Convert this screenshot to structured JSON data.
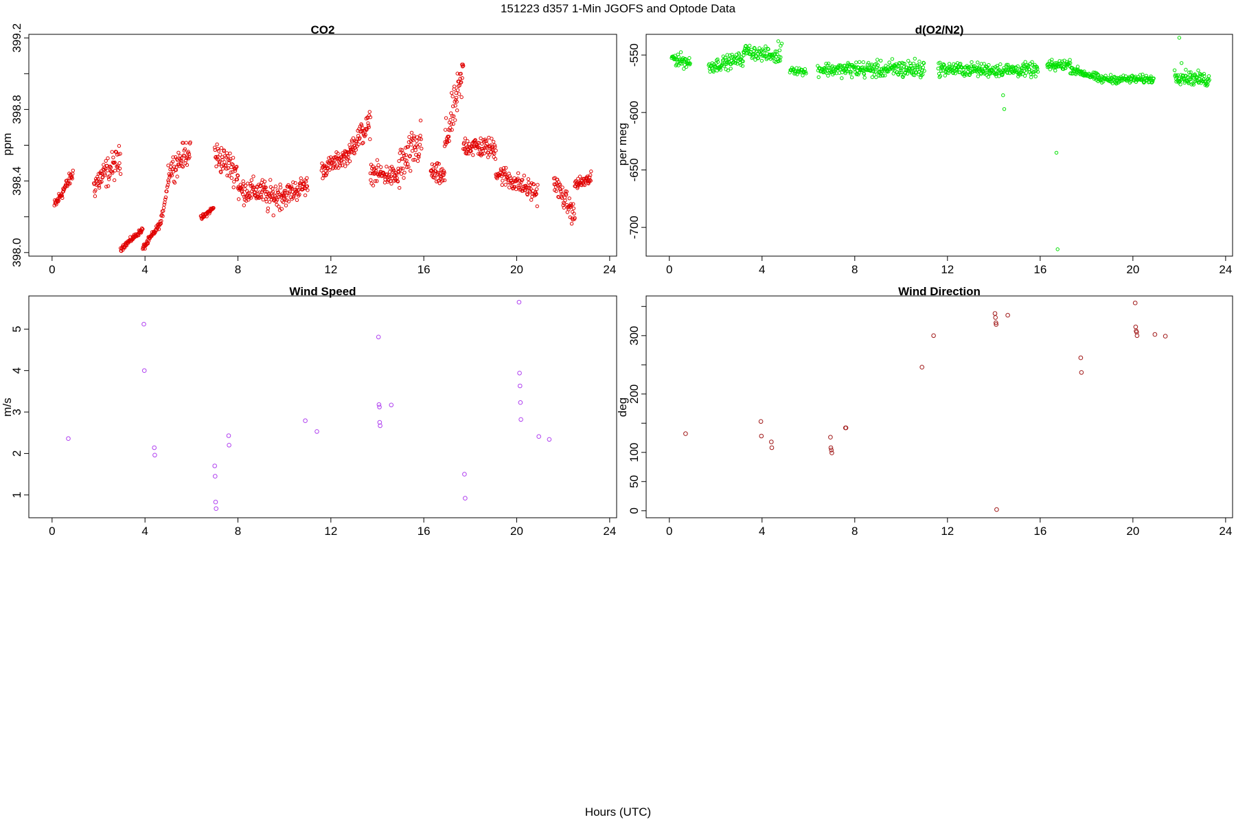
{
  "suptitle": "151223   d357   1-Min  JGOFS and Optode Data",
  "xlabel": "Hours (UTC)",
  "chart_data": [
    {
      "id": "co2",
      "type": "scatter",
      "title": "CO2",
      "ylabel": "ppm",
      "color": "#e00000",
      "marker_size": 2.2,
      "xlim": [
        -1,
        24.3
      ],
      "ylim": [
        397.98,
        399.22
      ],
      "xticks": [
        0,
        4,
        8,
        12,
        16,
        20,
        24
      ],
      "yticks": [
        398.0,
        398.4,
        398.8,
        399.2
      ],
      "yticks_minor": [
        398.2,
        398.6,
        399.0
      ],
      "ytick_labels": [
        "398.0",
        "398.4",
        "398.8",
        "399.2"
      ],
      "ylabel_rotated": true,
      "segments": [
        {
          "x0": 0.1,
          "x1": 0.9,
          "y0": 398.26,
          "y1": 398.44,
          "noise": 0.03,
          "n": 50
        },
        {
          "x0": 1.8,
          "x1": 2.95,
          "y0": 398.38,
          "y1": 398.52,
          "noise": 0.07,
          "n": 70
        },
        {
          "x0": 2.95,
          "x1": 3.9,
          "y0": 398.02,
          "y1": 398.13,
          "noise": 0.012,
          "n": 60
        },
        {
          "x0": 3.9,
          "x1": 4.7,
          "y0": 398.02,
          "y1": 398.17,
          "noise": 0.015,
          "n": 50
        },
        {
          "x0": 4.7,
          "x1": 5.0,
          "y0": 398.18,
          "y1": 398.4,
          "noise": 0.02,
          "n": 15
        },
        {
          "x0": 5.0,
          "x1": 5.95,
          "y0": 398.45,
          "y1": 398.58,
          "noise": 0.06,
          "n": 55
        },
        {
          "x0": 6.4,
          "x1": 6.95,
          "y0": 398.19,
          "y1": 398.25,
          "noise": 0.012,
          "n": 35
        },
        {
          "x0": 7.0,
          "x1": 8.0,
          "y0": 398.55,
          "y1": 398.45,
          "noise": 0.07,
          "n": 60
        },
        {
          "x0": 8.0,
          "x1": 9.2,
          "y0": 398.35,
          "y1": 398.34,
          "noise": 0.06,
          "n": 75
        },
        {
          "x0": 9.2,
          "x1": 10.0,
          "y0": 398.3,
          "y1": 398.33,
          "noise": 0.07,
          "n": 50
        },
        {
          "x0": 10.0,
          "x1": 11.0,
          "y0": 398.32,
          "y1": 398.38,
          "noise": 0.05,
          "n": 60
        },
        {
          "x0": 11.6,
          "x1": 12.9,
          "y0": 398.46,
          "y1": 398.56,
          "noise": 0.04,
          "n": 80
        },
        {
          "x0": 12.9,
          "x1": 13.7,
          "y0": 398.6,
          "y1": 398.72,
          "noise": 0.06,
          "n": 50
        },
        {
          "x0": 13.7,
          "x1": 14.9,
          "y0": 398.45,
          "y1": 398.42,
          "noise": 0.05,
          "n": 70
        },
        {
          "x0": 14.9,
          "x1": 15.9,
          "y0": 398.46,
          "y1": 398.62,
          "noise": 0.1,
          "n": 60
        },
        {
          "x0": 16.3,
          "x1": 16.9,
          "y0": 398.45,
          "y1": 398.42,
          "noise": 0.05,
          "n": 40
        },
        {
          "x0": 16.9,
          "x1": 17.7,
          "y0": 398.6,
          "y1": 399.0,
          "noise": 0.1,
          "n": 55
        },
        {
          "x0": 17.7,
          "x1": 19.1,
          "y0": 398.6,
          "y1": 398.58,
          "noise": 0.05,
          "n": 85
        },
        {
          "x0": 19.1,
          "x1": 20.9,
          "y0": 398.45,
          "y1": 398.33,
          "noise": 0.05,
          "n": 100
        },
        {
          "x0": 21.6,
          "x1": 22.5,
          "y0": 398.4,
          "y1": 398.2,
          "noise": 0.05,
          "n": 55
        },
        {
          "x0": 22.5,
          "x1": 23.2,
          "y0": 398.38,
          "y1": 398.41,
          "noise": 0.03,
          "n": 45
        }
      ]
    },
    {
      "id": "o2n2",
      "type": "scatter",
      "title": "d(O2/N2)",
      "ylabel": "per meg",
      "color": "#00e000",
      "marker_size": 2.2,
      "xlim": [
        -1,
        24.3
      ],
      "ylim": [
        -725,
        -532
      ],
      "xticks": [
        0,
        4,
        8,
        12,
        16,
        20,
        24
      ],
      "yticks": [
        -550,
        -600,
        -650,
        -700
      ],
      "ytick_labels": [
        "-550",
        "-600",
        "-650",
        "-700"
      ],
      "ylabel_rotated": true,
      "segments": [
        {
          "x0": 0.1,
          "x1": 0.9,
          "y0": -552,
          "y1": -557,
          "noise": 5,
          "n": 45
        },
        {
          "x0": 1.7,
          "x1": 3.2,
          "y0": -560,
          "y1": -553,
          "noise": 5,
          "n": 80
        },
        {
          "x0": 3.2,
          "x1": 4.8,
          "y0": -546,
          "y1": -552,
          "noise": 5,
          "n": 80
        },
        {
          "x0": 5.2,
          "x1": 5.9,
          "y0": -562,
          "y1": -565,
          "noise": 3,
          "n": 30
        },
        {
          "x0": 6.4,
          "x1": 7.6,
          "y0": -562,
          "y1": -563,
          "noise": 5,
          "n": 60
        },
        {
          "x0": 7.6,
          "x1": 9.6,
          "y0": -562,
          "y1": -563,
          "noise": 6,
          "n": 110
        },
        {
          "x0": 9.6,
          "x1": 11.0,
          "y0": -562,
          "y1": -562,
          "noise": 7,
          "n": 80
        },
        {
          "x0": 11.6,
          "x1": 13.8,
          "y0": -562,
          "y1": -563,
          "noise": 5,
          "n": 120
        },
        {
          "x0": 13.8,
          "x1": 15.9,
          "y0": -563,
          "y1": -563,
          "noise": 5,
          "n": 110
        },
        {
          "x0": 16.3,
          "x1": 17.3,
          "y0": -560,
          "y1": -558,
          "noise": 4,
          "n": 55
        },
        {
          "x0": 17.3,
          "x1": 18.5,
          "y0": -562,
          "y1": -570,
          "noise": 3,
          "n": 65
        },
        {
          "x0": 18.5,
          "x1": 20.9,
          "y0": -571,
          "y1": -571,
          "noise": 3,
          "n": 120
        },
        {
          "x0": 21.8,
          "x1": 23.3,
          "y0": -568,
          "y1": -572,
          "noise": 5,
          "n": 85
        }
      ],
      "points_x": [
        4.7,
        4.8,
        4.85,
        14.4,
        14.45,
        16.7,
        16.75,
        22.0,
        22.1
      ],
      "points_y": [
        -538,
        -542,
        -540,
        -585,
        -597,
        -635,
        -719,
        -535,
        -557
      ]
    },
    {
      "id": "windspeed",
      "type": "scatter",
      "title": "Wind Speed",
      "ylabel": "m/s",
      "color": "#b040f0",
      "marker_size": 2.8,
      "xlim": [
        -1,
        24.3
      ],
      "ylim": [
        0.45,
        5.8
      ],
      "xticks": [
        0,
        4,
        8,
        12,
        16,
        20,
        24
      ],
      "yticks": [
        1,
        2,
        3,
        4,
        5
      ],
      "ytick_labels": [
        "1",
        "2",
        "3",
        "4",
        "5"
      ],
      "ylabel_rotated": true,
      "x": [
        0.7,
        3.95,
        3.97,
        4.4,
        4.42,
        7.0,
        7.02,
        7.04,
        7.06,
        7.6,
        7.62,
        10.9,
        11.4,
        14.05,
        14.07,
        14.09,
        14.1,
        14.12,
        14.6,
        17.75,
        17.78,
        20.1,
        20.12,
        20.14,
        20.16,
        20.18,
        20.95,
        21.4
      ],
      "y": [
        2.36,
        5.12,
        4.0,
        2.14,
        1.96,
        1.7,
        1.45,
        0.83,
        0.67,
        2.43,
        2.2,
        2.79,
        2.53,
        4.81,
        3.18,
        3.12,
        2.75,
        2.67,
        3.17,
        1.5,
        0.92,
        5.65,
        3.94,
        3.63,
        3.23,
        2.82,
        2.41,
        2.34
      ]
    },
    {
      "id": "winddir",
      "type": "scatter",
      "title": "Wind Direction",
      "ylabel": "deg",
      "color": "#a01818",
      "marker_size": 2.8,
      "xlim": [
        -1,
        24.3
      ],
      "ylim": [
        -12,
        368
      ],
      "xticks": [
        0,
        4,
        8,
        12,
        16,
        20,
        24
      ],
      "yticks": [
        0,
        50,
        100,
        200,
        300
      ],
      "yticks_minor": [
        150,
        250,
        350
      ],
      "ytick_labels": [
        "0",
        "50",
        "100",
        "200",
        "300"
      ],
      "ylabel_rotated": true,
      "x": [
        0.7,
        3.95,
        3.97,
        4.4,
        4.42,
        6.95,
        6.97,
        6.99,
        7.01,
        7.6,
        7.62,
        10.9,
        11.4,
        14.05,
        14.07,
        14.09,
        14.1,
        14.12,
        14.6,
        17.75,
        17.78,
        20.1,
        20.12,
        20.14,
        20.16,
        20.18,
        20.95,
        21.4
      ],
      "y": [
        132,
        153,
        128,
        118,
        108,
        126,
        108,
        104,
        99,
        142,
        142,
        246,
        300,
        338,
        331,
        322,
        319,
        2,
        335,
        262,
        237,
        356,
        315,
        308,
        306,
        300,
        302,
        299
      ]
    }
  ]
}
